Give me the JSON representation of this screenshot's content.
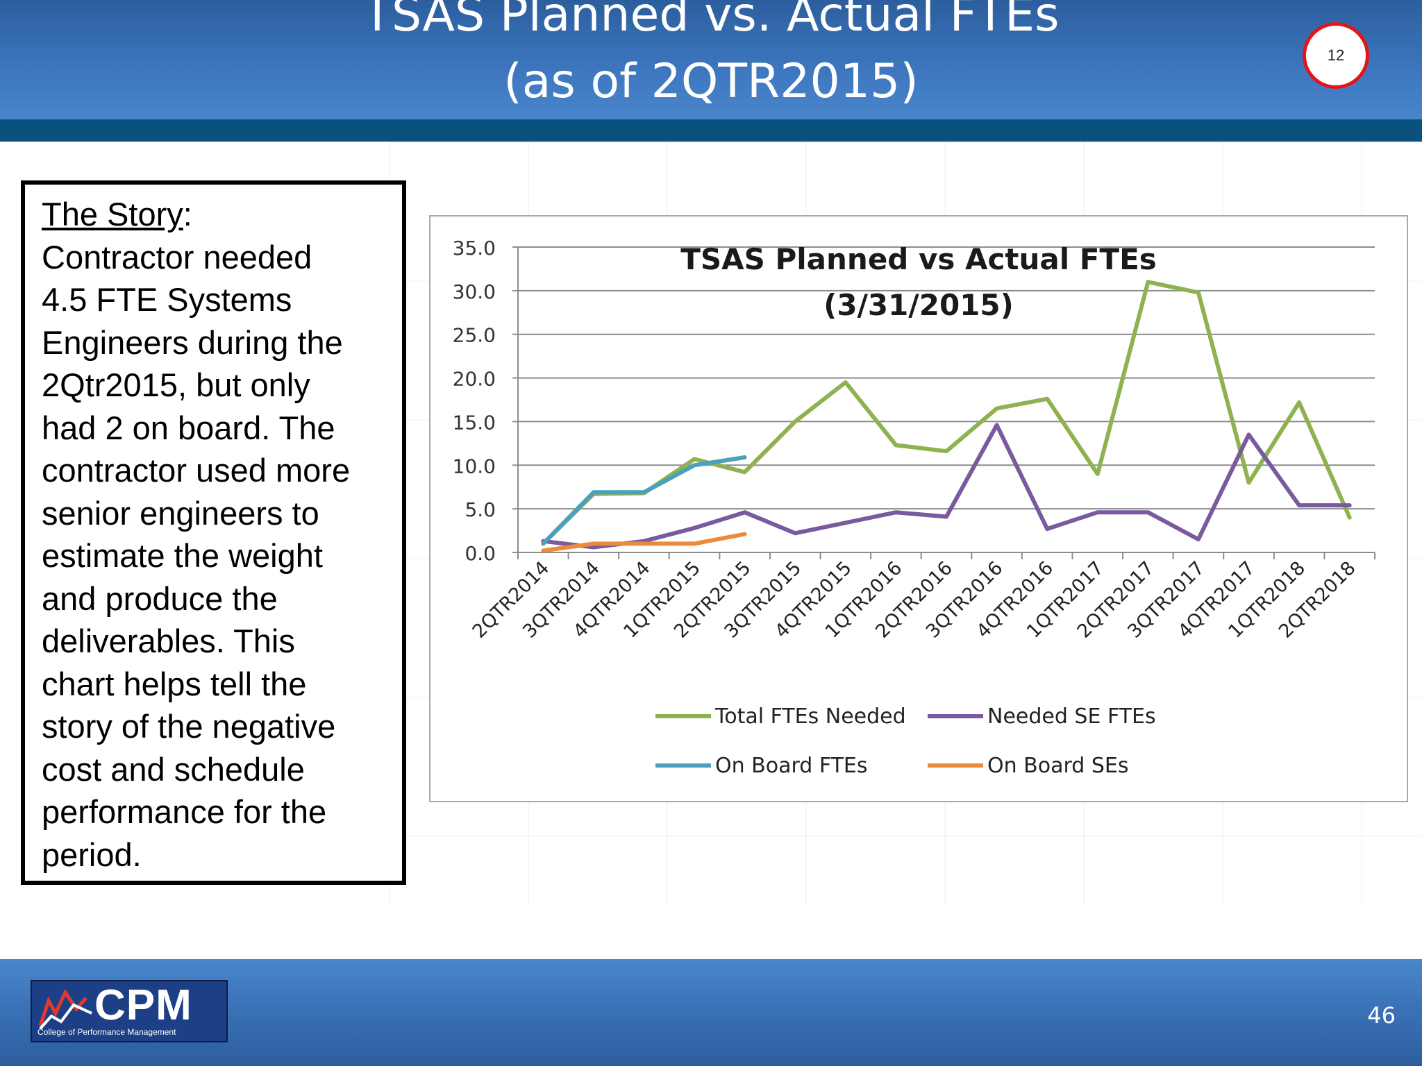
{
  "slide": {
    "title_line1": "TSAS Planned vs. Actual FTEs",
    "title_line2": "(as of 2QTR2015)",
    "badge_number": "12",
    "slide_number": "46",
    "colors": {
      "header": "#3c75bd",
      "stripe": "#0a527d",
      "badge_ring": "#e3151c"
    }
  },
  "story": {
    "heading": "The Story",
    "lines": [
      "Contractor needed",
      "4.5 FTE Systems",
      "Engineers during the",
      "2Qtr2015, but only",
      "had 2 on board.  The",
      "contractor used more",
      "senior engineers to",
      "estimate the weight",
      "and produce the",
      "deliverables. This",
      "chart helps tell the",
      "story of the negative",
      "cost and schedule",
      "performance for the",
      "period."
    ]
  },
  "logo": {
    "text": "CPM",
    "subtext": "College of Performance Management"
  },
  "chart_data": {
    "type": "line",
    "title": [
      "TSAS Planned vs Actual FTEs",
      "(3/31/2015)"
    ],
    "xlabel": "",
    "ylabel": "",
    "ylim": [
      0,
      35
    ],
    "y_ticks": [
      "0.0",
      "5.0",
      "10.0",
      "15.0",
      "20.0",
      "25.0",
      "30.0",
      "35.0"
    ],
    "grid": true,
    "legend_position": "bottom",
    "categories": [
      "2QTR2014",
      "3QTR2014",
      "4QTR2014",
      "1QTR2015",
      "2QTR2015",
      "3QTR2015",
      "4QTR2015",
      "1QTR2016",
      "2QTR2016",
      "3QTR2016",
      "4QTR2016",
      "1QTR2017",
      "2QTR2017",
      "3QTR2017",
      "4QTR2017",
      "1QTR2018",
      "2QTR2018"
    ],
    "series": [
      {
        "name": "Total FTEs  Needed",
        "color": "#8eb250",
        "values": [
          1.0,
          6.7,
          6.8,
          10.7,
          9.2,
          15.0,
          19.5,
          12.3,
          11.6,
          16.5,
          17.6,
          9.0,
          31.0,
          29.8,
          8.0,
          17.2,
          4.0
        ]
      },
      {
        "name": "Needed SE FTEs",
        "color": "#7a5a9e",
        "values": [
          1.3,
          0.6,
          1.3,
          2.8,
          4.6,
          2.2,
          3.4,
          4.6,
          4.1,
          14.6,
          2.7,
          4.6,
          4.6,
          1.5,
          13.5,
          5.4,
          5.4
        ]
      },
      {
        "name": "On Board FTEs",
        "color": "#4aa0bd",
        "values": [
          1.0,
          6.9,
          6.9,
          10.0,
          10.9,
          null,
          null,
          null,
          null,
          null,
          null,
          null,
          null,
          null,
          null,
          null,
          null
        ]
      },
      {
        "name": "On Board SEs",
        "color": "#ec8a3c",
        "values": [
          0.2,
          1.0,
          1.0,
          1.0,
          2.1,
          null,
          null,
          null,
          null,
          null,
          null,
          null,
          null,
          null,
          null,
          null,
          null
        ]
      }
    ]
  }
}
